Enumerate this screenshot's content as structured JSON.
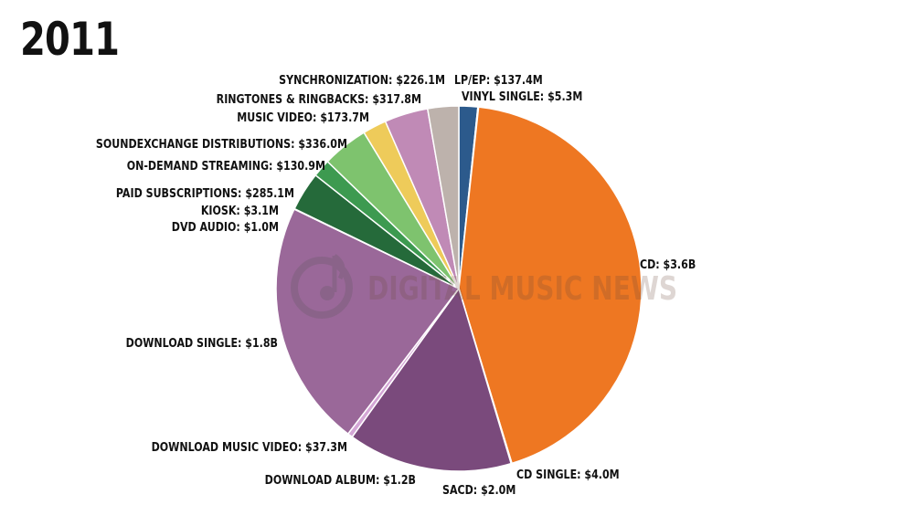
{
  "page": {
    "year": "2011"
  },
  "watermark": {
    "text": "DIGITAL MUSIC NEWS"
  },
  "chart_data": {
    "type": "pie",
    "title": "2011",
    "units": "USD",
    "slices": [
      {
        "label": "LP/EP: $137.4M",
        "name": "LP/EP",
        "value": 137.4,
        "color": "#2c5a8c"
      },
      {
        "label": "VINYL SINGLE: $5.3M",
        "name": "VINYL SINGLE",
        "value": 5.3,
        "color": "#4f86c0"
      },
      {
        "label": "CD: $3.6B",
        "name": "CD",
        "value": 3600,
        "color": "#ee7722"
      },
      {
        "label": "CD SINGLE: $4.0M",
        "name": "CD SINGLE",
        "value": 4.0,
        "color": "#f1a64e"
      },
      {
        "label": "SACD: $2.0M",
        "name": "SACD",
        "value": 2.0,
        "color": "#f7d28f"
      },
      {
        "label": "DOWNLOAD ALBUM: $1.2B",
        "name": "DOWNLOAD ALBUM",
        "value": 1200,
        "color": "#7a4a7c"
      },
      {
        "label": "DOWNLOAD MUSIC VIDEO: $37.3M",
        "name": "DOWNLOAD MUSIC VIDEO",
        "value": 37.3,
        "color": "#d4a6d6"
      },
      {
        "label": "DOWNLOAD SINGLE: $1.8B",
        "name": "DOWNLOAD SINGLE",
        "value": 1800,
        "color": "#9a6899"
      },
      {
        "label": "DVD AUDIO: $1.0M",
        "name": "DVD AUDIO",
        "value": 1.0,
        "color": "#bfa0be"
      },
      {
        "label": "KIOSK: $3.1M",
        "name": "KIOSK",
        "value": 3.1,
        "color": "#184d2a"
      },
      {
        "label": "PAID SUBSCRIPTIONS: $285.1M",
        "name": "PAID SUBSCRIPTIONS",
        "value": 285.1,
        "color": "#256a3a"
      },
      {
        "label": "ON-DEMAND STREAMING: $130.9M",
        "name": "ON-DEMAND STREAMING",
        "value": 130.9,
        "color": "#3d9a50"
      },
      {
        "label": "SOUNDEXCHANGE DISTRIBUTIONS: $336.0M",
        "name": "SOUNDEXCHANGE DISTRIBUTIONS",
        "value": 336.0,
        "color": "#7ec36e"
      },
      {
        "label": "MUSIC VIDEO: $173.7M",
        "name": "MUSIC VIDEO",
        "value": 173.7,
        "color": "#eecb5a"
      },
      {
        "label": "RINGTONES & RINGBACKS: $317.8M",
        "name": "RINGTONES & RINGBACKS",
        "value": 317.8,
        "color": "#c08ab6"
      },
      {
        "label": "SYNCHRONIZATION: $226.1M",
        "name": "SYNCHRONIZATION",
        "value": 226.1,
        "color": "#bdb2ac"
      }
    ]
  }
}
